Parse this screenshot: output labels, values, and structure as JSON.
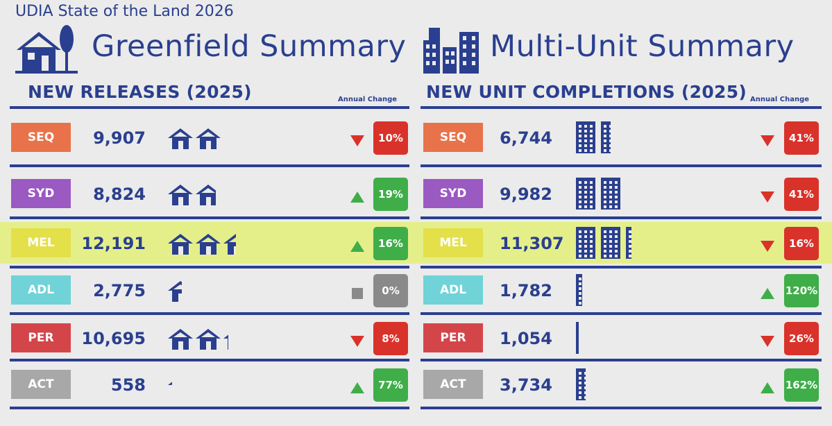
{
  "header": {
    "report_title": "UDIA State of the Land 2026",
    "greenfield_title": "Greenfield Summary",
    "multiunit_title": "Multi-Unit Summary"
  },
  "greenfield": {
    "section_title": "NEW RELEASES (2025)",
    "annual_change_label": "Annual Change",
    "rows": [
      {
        "region": "SEQ",
        "value": "9,907",
        "change": "10%",
        "direction": "down",
        "houses": 2
      },
      {
        "region": "SYD",
        "value": "8,824",
        "change": "19%",
        "direction": "up",
        "houses": 1.8
      },
      {
        "region": "MEL",
        "value": "12,191",
        "change": "16%",
        "direction": "up",
        "houses": 2.5
      },
      {
        "region": "ADL",
        "value": "2,775",
        "change": "0%",
        "direction": "flat",
        "houses": 0.55
      },
      {
        "region": "PER",
        "value": "10,695",
        "change": "8%",
        "direction": "down",
        "houses": 2.2
      },
      {
        "region": "ACT",
        "value": "558",
        "change": "77%",
        "direction": "up",
        "houses": 0.15
      }
    ]
  },
  "multiunit": {
    "section_title": "NEW UNIT COMPLETIONS (2025)",
    "annual_change_label": "Annual Change",
    "rows": [
      {
        "region": "SEQ",
        "value": "6,744",
        "change": "41%",
        "direction": "down",
        "buildings": 1.5
      },
      {
        "region": "SYD",
        "value": "9,982",
        "change": "41%",
        "direction": "down",
        "buildings": 2
      },
      {
        "region": "MEL",
        "value": "11,307",
        "change": "16%",
        "direction": "down",
        "buildings": 2.3
      },
      {
        "region": "ADL",
        "value": "1,782",
        "change": "120%",
        "direction": "up",
        "buildings": 0.35
      },
      {
        "region": "PER",
        "value": "1,054",
        "change": "26%",
        "direction": "down",
        "buildings": 0.2
      },
      {
        "region": "ACT",
        "value": "3,734",
        "change": "162%",
        "direction": "up",
        "buildings": 0.5
      }
    ]
  },
  "colors": {
    "navy": "#2a3f8f",
    "up_green": "#3fae49",
    "down_red": "#d9322a",
    "flat_grey": "#8a8a8a",
    "highlight": "#e2f06e",
    "region": {
      "SEQ": "#e8734a",
      "SYD": "#9b59c2",
      "MEL": "#e4e04a",
      "ADL": "#6fd3d8",
      "PER": "#d4454a",
      "ACT": "#a8a8a8"
    }
  },
  "highlighted_region": "MEL"
}
